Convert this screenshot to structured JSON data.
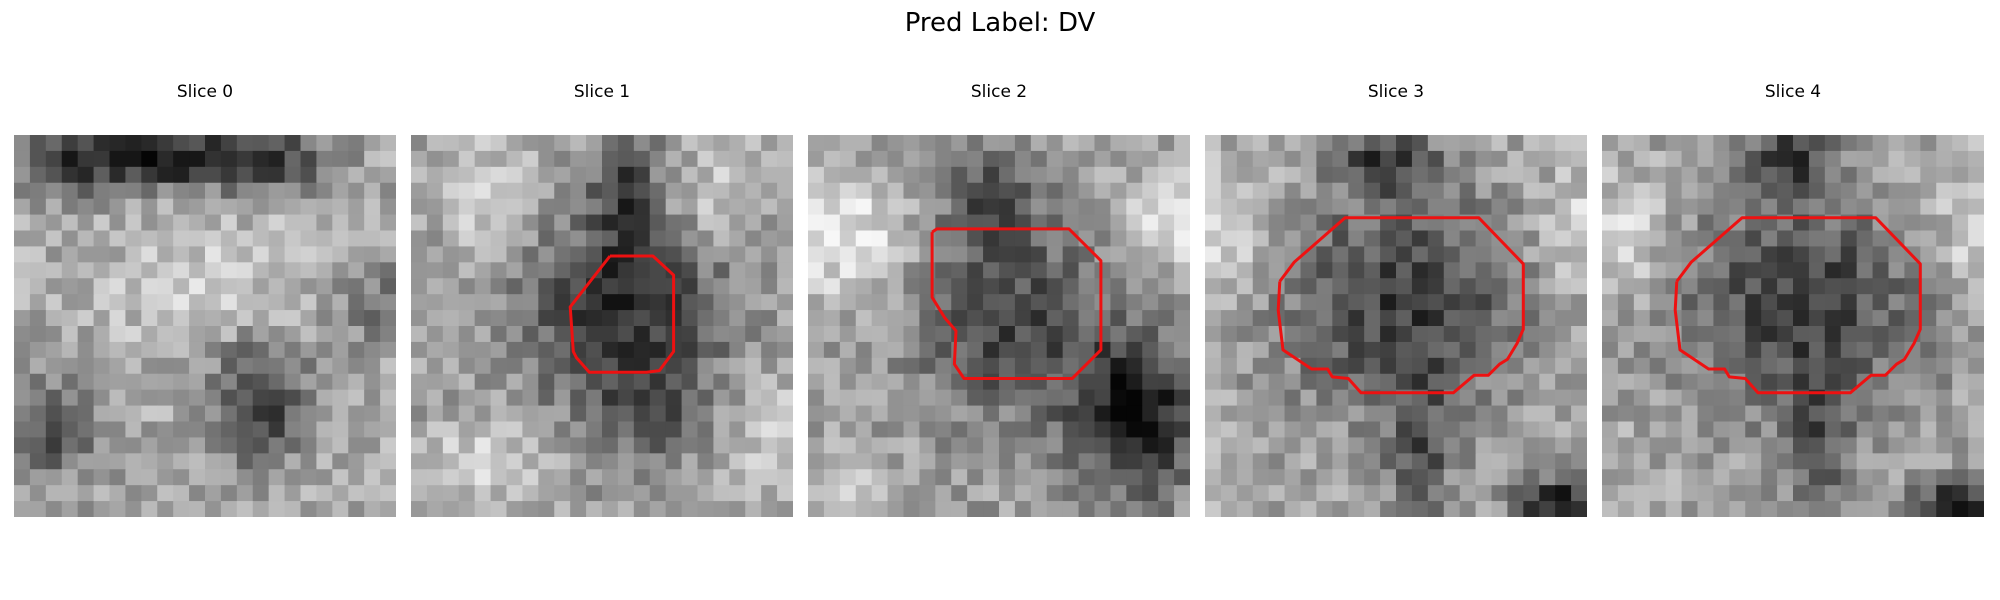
{
  "figure": {
    "title": "Pred Label: DV"
  },
  "slices": [
    {
      "label": "Slice 0",
      "has_contour": false
    },
    {
      "label": "Slice 1",
      "has_contour": true
    },
    {
      "label": "Slice 2",
      "has_contour": true
    },
    {
      "label": "Slice 3",
      "has_contour": true
    },
    {
      "label": "Slice 4",
      "has_contour": true
    }
  ],
  "contour_color": "#ee1111",
  "colormap": "grayscale"
}
